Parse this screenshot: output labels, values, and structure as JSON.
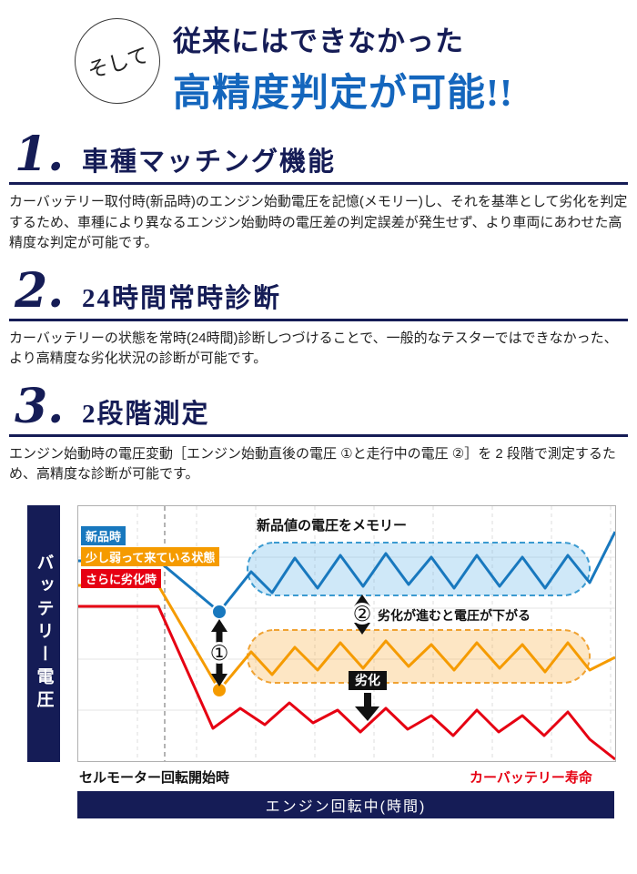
{
  "intro": {
    "circle_label": "そして",
    "line1": "従来にはできなかった",
    "line2": "高精度判定が可能!!"
  },
  "sections": [
    {
      "number": "1.",
      "title": "車種マッチング機能",
      "body": "カーバッテリー取付時(新品時)のエンジン始動電圧を記憶(メモリー)し、それを基準として劣化を判定するため、車種により異なるエンジン始動時の電圧差の判定誤差が発生せず、より車両にあわせた高精度な判定が可能です。"
    },
    {
      "number": "2.",
      "title": "24時間常時診断",
      "body": "カーバッテリーの状態を常時(24時間)診断しつづけることで、一般的なテスターではできなかった、より高精度な劣化状況の診断が可能です。"
    },
    {
      "number": "3.",
      "title": "2段階測定",
      "body": "エンジン始動時の電圧変動［エンジン始動直後の電圧 ①と走行中の電圧 ②］を 2 段階で測定するため、高精度な診断が可能です。"
    }
  ],
  "chart": {
    "y_axis_label": "バッテリー電圧",
    "x_axis_label": "エンジン回転中(時間)",
    "legend": [
      {
        "label": "新品時",
        "color": "#1878be"
      },
      {
        "label": "少し弱って来ている状態",
        "color": "#f59b00"
      },
      {
        "label": "さらに劣化時",
        "color": "#e60012"
      }
    ],
    "annotations": {
      "memory": "新品値の電圧をメモリー",
      "marker1": "①",
      "marker2": "②",
      "degrade": "劣化が進むと電圧が下がる",
      "degrade_badge": "劣化",
      "x_start": "セルモーター回転開始時",
      "lifespan": "カーバッテリー寿命"
    }
  },
  "chart_data": {
    "type": "line",
    "title": "",
    "xlabel": "エンジン回転中(時間)",
    "ylabel": "バッテリー電圧",
    "axes_numeric": false,
    "units": "relative plot pixels (conceptual chart, no numeric scale shown; lower y = higher voltage)",
    "legend_position": "top-left inside plot",
    "grid": {
      "x": [
        65,
        130,
        195,
        260,
        325,
        390,
        455,
        520,
        585
      ],
      "y": [
        56,
        112,
        168,
        224
      ]
    },
    "start_line_x": 95,
    "series": [
      {
        "name": "新品時",
        "color": "#1878be",
        "points": [
          [
            0,
            60
          ],
          [
            88,
            60
          ],
          [
            155,
            116
          ],
          [
            190,
            72
          ],
          [
            213,
            95
          ],
          [
            238,
            57
          ],
          [
            263,
            90
          ],
          [
            288,
            54
          ],
          [
            313,
            88
          ],
          [
            338,
            52
          ],
          [
            363,
            86
          ],
          [
            388,
            56
          ],
          [
            413,
            90
          ],
          [
            438,
            54
          ],
          [
            463,
            88
          ],
          [
            488,
            56
          ],
          [
            513,
            90
          ],
          [
            538,
            54
          ],
          [
            562,
            84
          ],
          [
            590,
            28
          ]
        ]
      },
      {
        "name": "少し弱って来ている状態",
        "color": "#f59b00",
        "points": [
          [
            0,
            87
          ],
          [
            88,
            87
          ],
          [
            155,
            202
          ],
          [
            190,
            160
          ],
          [
            213,
            185
          ],
          [
            238,
            155
          ],
          [
            263,
            180
          ],
          [
            288,
            150
          ],
          [
            313,
            178
          ],
          [
            338,
            148
          ],
          [
            363,
            176
          ],
          [
            388,
            152
          ],
          [
            413,
            180
          ],
          [
            438,
            150
          ],
          [
            463,
            178
          ],
          [
            488,
            152
          ],
          [
            513,
            182
          ],
          [
            538,
            150
          ],
          [
            562,
            180
          ],
          [
            590,
            166
          ]
        ]
      },
      {
        "name": "さらに劣化時",
        "color": "#e60012",
        "points": [
          [
            0,
            110
          ],
          [
            88,
            110
          ],
          [
            148,
            244
          ],
          [
            178,
            222
          ],
          [
            205,
            240
          ],
          [
            232,
            216
          ],
          [
            258,
            238
          ],
          [
            285,
            224
          ],
          [
            310,
            248
          ],
          [
            338,
            222
          ],
          [
            362,
            245
          ],
          [
            388,
            230
          ],
          [
            412,
            252
          ],
          [
            438,
            224
          ],
          [
            462,
            248
          ],
          [
            488,
            230
          ],
          [
            512,
            252
          ],
          [
            538,
            226
          ],
          [
            562,
            256
          ],
          [
            590,
            278
          ]
        ]
      }
    ],
    "key_points": [
      {
        "series": "新品時",
        "x": 155,
        "y": 116,
        "color": "#1878be"
      },
      {
        "series": "少し弱って来ている状態",
        "x": 155,
        "y": 202,
        "color": "#f59b00"
      }
    ]
  }
}
